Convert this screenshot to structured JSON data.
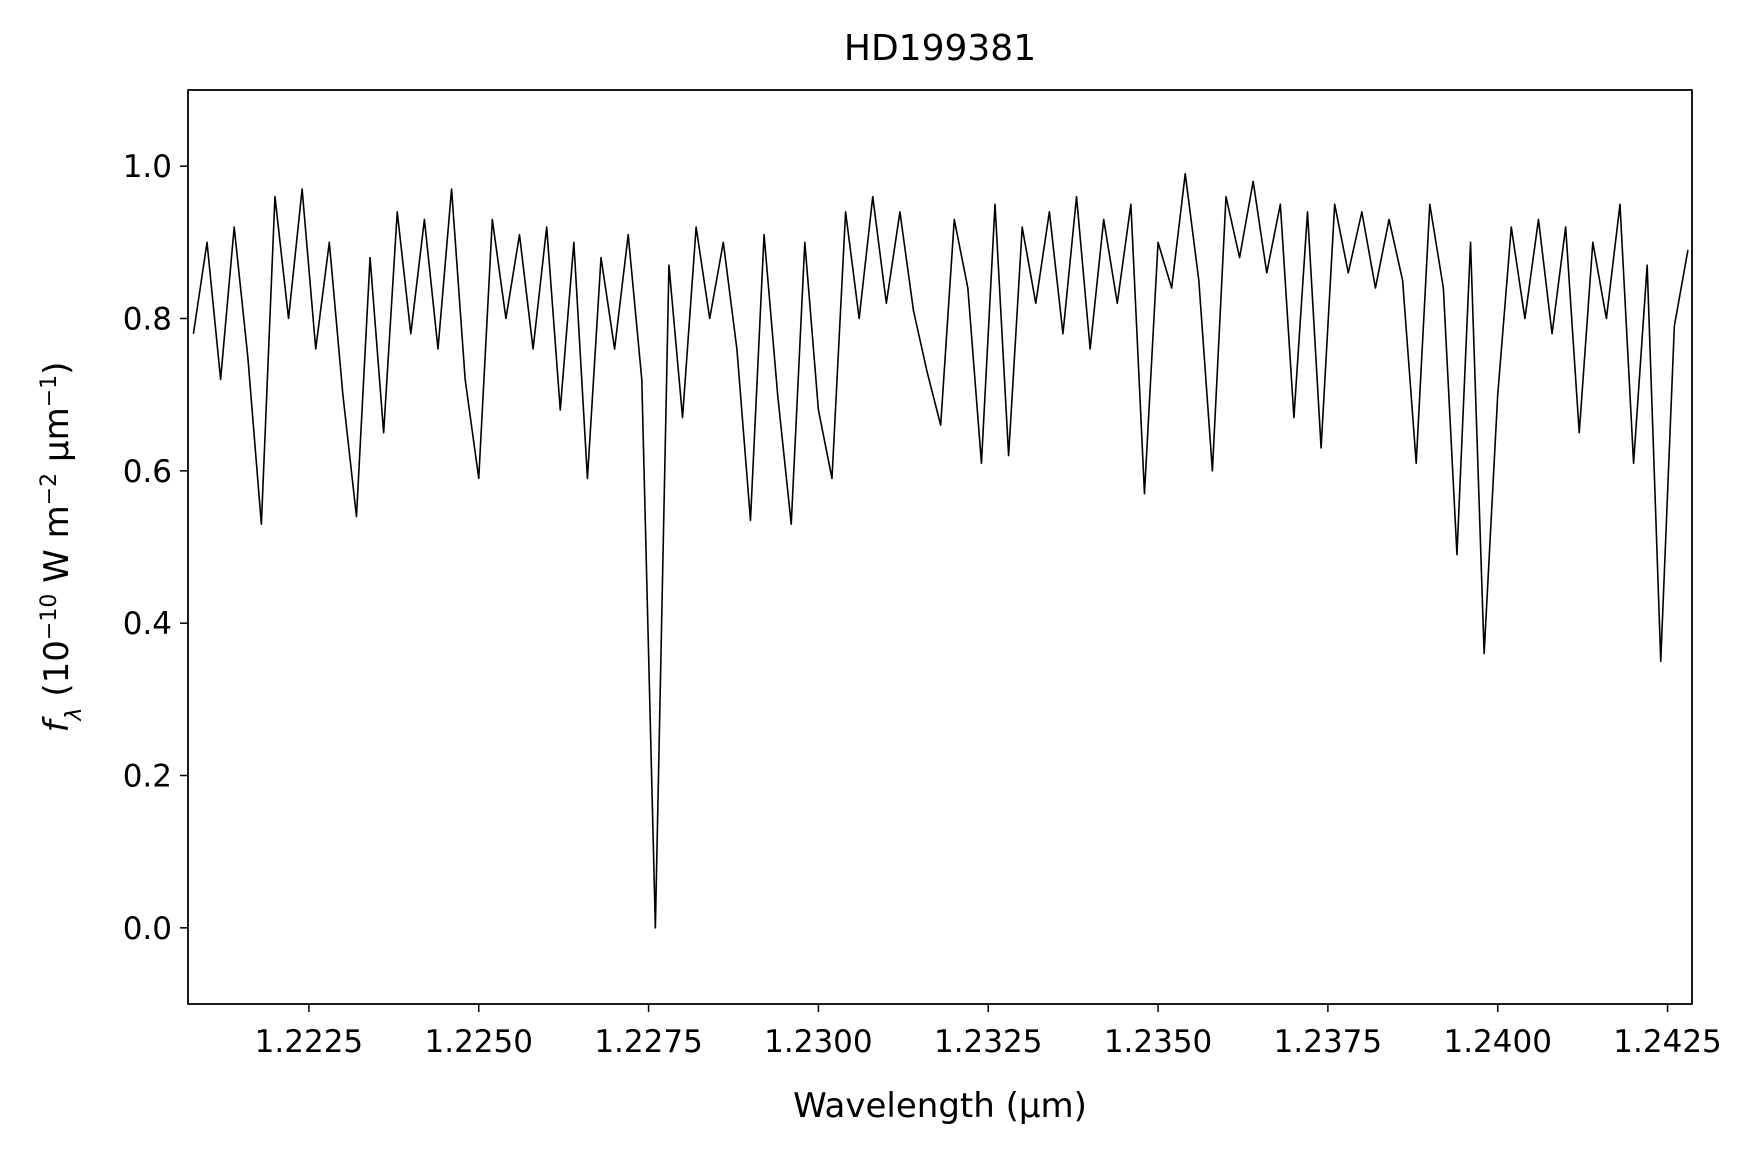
{
  "chart_data": {
    "type": "line",
    "title": "HD199381",
    "x_label": "Wavelength (μm)",
    "y_label": [
      "f",
      "λ",
      " (10",
      "−10",
      " W m",
      "−2",
      " μm",
      "−1",
      ")"
    ],
    "color": "#000000",
    "xlim": [
      1.22072,
      1.24286
    ],
    "ylim": [
      -0.1,
      1.1
    ],
    "xticks": [
      1.2225,
      {
        "value": 1.225,
        "label": "1.2250"
      },
      1.2275,
      {
        "value": 1.23,
        "label": "1.2300"
      },
      1.2325,
      {
        "value": 1.235,
        "label": "1.2350"
      },
      1.2375,
      {
        "value": 1.24,
        "label": "1.2400"
      },
      1.2425
    ],
    "yticks": [
      {
        "value": 0,
        "label": "0.0"
      },
      0.2,
      0.4,
      0.6,
      0.8,
      {
        "value": 1,
        "label": "1.0"
      }
    ],
    "x": [
      1.2208,
      1.221,
      1.2212,
      1.2214,
      1.2216,
      1.2218,
      1.222,
      1.2222,
      1.2224,
      1.2226,
      1.2228,
      1.223,
      1.2232,
      1.2234,
      1.2236,
      1.2238,
      1.224,
      1.2242,
      1.2244,
      1.2246,
      1.2248,
      1.225,
      1.2252,
      1.2254,
      1.2256,
      1.2258,
      1.226,
      1.2262,
      1.2264,
      1.2266,
      1.2268,
      1.227,
      1.2272,
      1.2274,
      1.2276,
      1.2278,
      1.228,
      1.2282,
      1.2284,
      1.2286,
      1.2288,
      1.229,
      1.2292,
      1.2294,
      1.2296,
      1.2298,
      1.23,
      1.2302,
      1.2304,
      1.2306,
      1.2308,
      1.231,
      1.2312,
      1.2314,
      1.2316,
      1.2318,
      1.232,
      1.2322,
      1.2324,
      1.2326,
      1.2328,
      1.233,
      1.2332,
      1.2334,
      1.2336,
      1.2338,
      1.234,
      1.2342,
      1.2344,
      1.2346,
      1.2348,
      1.235,
      1.2352,
      1.2354,
      1.2356,
      1.2358,
      1.236,
      1.2362,
      1.2364,
      1.2366,
      1.2368,
      1.237,
      1.2372,
      1.2374,
      1.2376,
      1.2378,
      1.238,
      1.2382,
      1.2384,
      1.2386,
      1.2388,
      1.239,
      1.2392,
      1.2394,
      1.2396,
      1.2398,
      1.24,
      1.2402,
      1.2404,
      1.2406,
      1.2408,
      1.241,
      1.2412,
      1.2414,
      1.2416,
      1.2418,
      1.242,
      1.2422,
      1.2424,
      1.2426,
      1.2428
    ],
    "values": [
      0.78,
      0.9,
      0.72,
      0.92,
      0.75,
      0.53,
      0.96,
      0.8,
      0.97,
      0.76,
      0.9,
      0.7,
      0.54,
      0.88,
      0.65,
      0.94,
      0.78,
      0.93,
      0.76,
      0.97,
      0.72,
      0.59,
      0.93,
      0.8,
      0.91,
      0.76,
      0.92,
      0.68,
      0.9,
      0.59,
      0.88,
      0.76,
      0.91,
      0.72,
      0.0,
      0.87,
      0.67,
      0.92,
      0.8,
      0.9,
      0.76,
      0.535,
      0.91,
      0.7,
      0.53,
      0.9,
      0.68,
      0.59,
      0.94,
      0.8,
      0.96,
      0.82,
      0.94,
      0.81,
      0.73,
      0.66,
      0.93,
      0.84,
      0.61,
      0.95,
      0.62,
      0.92,
      0.82,
      0.94,
      0.78,
      0.96,
      0.76,
      0.93,
      0.82,
      0.95,
      0.57,
      0.9,
      0.84,
      0.99,
      0.85,
      0.6,
      0.96,
      0.88,
      0.98,
      0.86,
      0.95,
      0.67,
      0.94,
      0.63,
      0.95,
      0.86,
      0.94,
      0.84,
      0.93,
      0.85,
      0.61,
      0.95,
      0.84,
      0.49,
      0.9,
      0.36,
      0.7,
      0.92,
      0.8,
      0.93,
      0.78,
      0.92,
      0.65,
      0.9,
      0.8,
      0.95,
      0.61,
      0.87,
      0.35,
      0.79,
      0.89
    ]
  }
}
